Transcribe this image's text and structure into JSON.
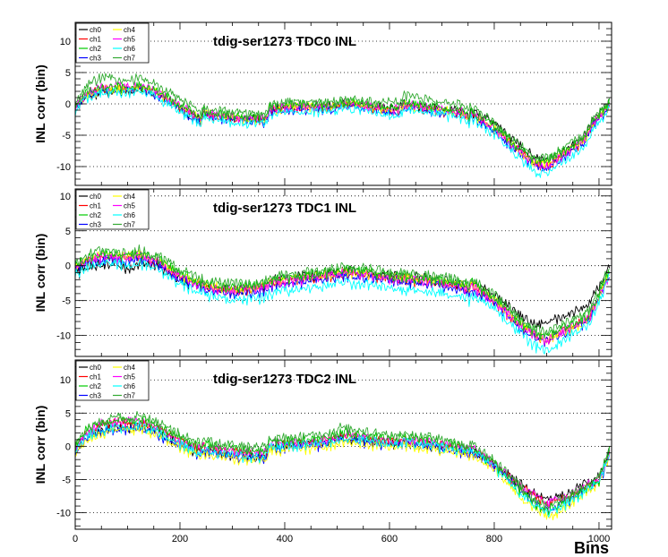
{
  "figure": {
    "x_axis_title": "Bins"
  },
  "colors": {
    "ch0": "#000000",
    "ch1": "#ff0000",
    "ch2": "#00cc00",
    "ch3": "#0000ff",
    "ch4": "#ffff00",
    "ch5": "#ff00ff",
    "ch6": "#00ffff",
    "ch7": "#33aa33"
  },
  "chart_data": [
    {
      "type": "line",
      "title": "tdig-ser1273 TDC0 INL",
      "xlabel": "",
      "ylabel": "INL corr (bin)",
      "xlim": [
        0,
        1024
      ],
      "ylim": [
        -13,
        13
      ],
      "x_ticks": [
        0,
        200,
        400,
        600,
        800,
        1000
      ],
      "y_ticks": [
        -10,
        -5,
        0,
        5,
        10
      ],
      "grid": "horizontal dotted",
      "legend": "top-left",
      "x": [
        0,
        20,
        50,
        80,
        110,
        120,
        160,
        200,
        240,
        245,
        280,
        330,
        365,
        370,
        420,
        470,
        500,
        505,
        550,
        600,
        620,
        625,
        680,
        740,
        752,
        755,
        800,
        850,
        880,
        900,
        940,
        970,
        990,
        1020
      ],
      "series": [
        {
          "name": "ch0",
          "values": [
            -0.5,
            1.0,
            2.0,
            2.0,
            2.0,
            2.5,
            1.5,
            -0.5,
            -2.5,
            -1.5,
            -1.8,
            -2.2,
            -2.3,
            -0.7,
            -0.3,
            -0.2,
            -0.3,
            0.3,
            0.0,
            -0.5,
            -0.5,
            0.2,
            -0.5,
            -1.0,
            -2.0,
            -1.0,
            -3.0,
            -6.5,
            -8.5,
            -9.0,
            -7.0,
            -5.0,
            -2.5,
            0.5
          ]
        },
        {
          "name": "ch1",
          "values": [
            -0.8,
            1.5,
            2.5,
            2.5,
            2.5,
            3.0,
            1.5,
            -0.5,
            -2.5,
            -1.5,
            -2.0,
            -2.5,
            -2.5,
            -1.0,
            -0.5,
            -0.5,
            -0.5,
            0.0,
            -0.3,
            -1.0,
            -1.0,
            -0.2,
            -0.8,
            -1.5,
            -2.5,
            -1.5,
            -4.0,
            -7.5,
            -9.5,
            -10.0,
            -7.5,
            -6.0,
            -3.0,
            0.0
          ]
        },
        {
          "name": "ch2",
          "values": [
            -0.5,
            1.8,
            2.8,
            2.8,
            2.6,
            3.2,
            2.0,
            0.0,
            -2.0,
            -1.0,
            -1.5,
            -2.0,
            -2.0,
            -0.5,
            0.0,
            0.0,
            0.0,
            0.5,
            0.2,
            -0.5,
            -0.5,
            0.5,
            -0.3,
            -1.0,
            -2.0,
            -1.0,
            -3.5,
            -7.0,
            -9.0,
            -9.0,
            -7.0,
            -5.5,
            -2.5,
            0.3
          ]
        },
        {
          "name": "ch3",
          "values": [
            -0.8,
            1.3,
            2.3,
            2.3,
            2.2,
            2.8,
            1.3,
            -0.8,
            -2.8,
            -1.8,
            -2.2,
            -2.7,
            -2.7,
            -1.2,
            -0.7,
            -0.7,
            -0.7,
            -0.2,
            -0.5,
            -1.2,
            -1.2,
            -0.4,
            -1.0,
            -1.7,
            -2.7,
            -1.7,
            -4.3,
            -8.0,
            -10.0,
            -10.3,
            -8.0,
            -6.2,
            -3.2,
            -0.2
          ]
        },
        {
          "name": "ch4",
          "values": [
            -0.5,
            1.5,
            2.5,
            2.5,
            2.5,
            3.0,
            1.8,
            -0.3,
            -2.3,
            -1.3,
            -1.8,
            -2.3,
            -2.3,
            -0.8,
            -0.3,
            -0.3,
            -0.3,
            0.2,
            0.0,
            -0.8,
            -0.8,
            0.0,
            -0.6,
            -1.3,
            -2.3,
            -1.3,
            -3.8,
            -7.5,
            -9.5,
            -9.5,
            -7.5,
            -5.8,
            -2.8,
            0.0
          ]
        },
        {
          "name": "ch5",
          "values": [
            -0.5,
            1.8,
            2.8,
            3.0,
            2.8,
            3.2,
            1.8,
            -0.2,
            -2.2,
            -1.2,
            -1.7,
            -2.2,
            -2.2,
            -0.7,
            -0.2,
            -0.2,
            -0.2,
            0.3,
            0.0,
            -0.7,
            -0.7,
            0.1,
            -0.5,
            -1.2,
            -2.2,
            -1.2,
            -3.8,
            -7.6,
            -9.6,
            -9.8,
            -7.6,
            -5.9,
            -2.9,
            0.1
          ]
        },
        {
          "name": "ch6",
          "values": [
            -1.0,
            1.0,
            2.0,
            2.0,
            2.0,
            2.5,
            1.0,
            -1.2,
            -3.2,
            -2.2,
            -2.6,
            -3.1,
            -3.1,
            -1.6,
            -1.1,
            -1.1,
            -1.1,
            -0.6,
            -0.9,
            -1.6,
            -1.6,
            -0.8,
            -1.4,
            -2.1,
            -3.1,
            -2.1,
            -4.8,
            -8.6,
            -10.8,
            -11.0,
            -8.8,
            -6.8,
            -3.8,
            -0.6
          ]
        },
        {
          "name": "ch7",
          "values": [
            0.0,
            3.0,
            4.5,
            4.0,
            4.0,
            4.5,
            3.0,
            1.0,
            -1.0,
            -0.5,
            -1.0,
            -1.5,
            -1.5,
            0.0,
            0.5,
            0.5,
            0.5,
            1.0,
            0.7,
            0.5,
            0.5,
            1.5,
            0.8,
            0.0,
            -1.0,
            0.0,
            -3.0,
            -6.5,
            -8.5,
            -8.5,
            -6.5,
            -5.0,
            -2.0,
            0.5
          ]
        }
      ]
    },
    {
      "type": "line",
      "title": "tdig-ser1273 TDC1 INL",
      "xlabel": "",
      "ylabel": "INL corr (bin)",
      "xlim": [
        0,
        1024
      ],
      "ylim": [
        -13,
        11
      ],
      "x_ticks": [
        0,
        200,
        400,
        600,
        800,
        1000
      ],
      "y_ticks": [
        -10,
        -5,
        0,
        5,
        10
      ],
      "grid": "horizontal dotted",
      "legend": "top-left",
      "x": [
        0,
        30,
        60,
        90,
        110,
        120,
        160,
        200,
        250,
        300,
        350,
        365,
        370,
        420,
        470,
        520,
        560,
        600,
        650,
        700,
        740,
        752,
        755,
        800,
        850,
        880,
        900,
        940,
        980,
        1020
      ],
      "series": [
        {
          "name": "ch0",
          "values": [
            -1.0,
            0.0,
            0.5,
            0.0,
            -0.2,
            0.5,
            0.0,
            -2.0,
            -3.0,
            -3.5,
            -3.0,
            -2.5,
            -2.0,
            -1.5,
            -1.0,
            -0.5,
            -0.8,
            -1.3,
            -1.5,
            -2.0,
            -2.5,
            -3.0,
            -2.2,
            -4.0,
            -7.0,
            -8.5,
            -8.0,
            -7.0,
            -5.5,
            0.0
          ]
        },
        {
          "name": "ch1",
          "values": [
            -0.2,
            1.0,
            1.5,
            1.2,
            1.2,
            1.5,
            0.5,
            -1.5,
            -3.0,
            -3.5,
            -3.2,
            -3.0,
            -2.5,
            -2.0,
            -1.5,
            -1.0,
            -1.3,
            -1.8,
            -2.0,
            -2.5,
            -3.0,
            -3.5,
            -2.8,
            -5.0,
            -8.5,
            -10.0,
            -10.5,
            -9.0,
            -7.5,
            -1.0
          ]
        },
        {
          "name": "ch2",
          "values": [
            0.2,
            1.5,
            2.0,
            1.8,
            1.8,
            2.0,
            1.0,
            -1.0,
            -2.5,
            -3.0,
            -2.8,
            -2.5,
            -2.0,
            -1.5,
            -1.0,
            -0.5,
            -0.8,
            -1.3,
            -1.5,
            -2.0,
            -2.5,
            -3.0,
            -2.2,
            -4.5,
            -8.0,
            -9.5,
            -10.0,
            -8.5,
            -7.0,
            -0.5
          ]
        },
        {
          "name": "ch3",
          "values": [
            -0.5,
            0.8,
            1.2,
            1.0,
            1.0,
            1.3,
            0.3,
            -1.8,
            -3.3,
            -3.8,
            -3.5,
            -3.3,
            -2.8,
            -2.3,
            -1.8,
            -1.3,
            -1.6,
            -2.1,
            -2.3,
            -2.8,
            -3.3,
            -3.8,
            -3.1,
            -5.3,
            -8.8,
            -10.3,
            -10.8,
            -9.3,
            -7.8,
            -1.3
          ]
        },
        {
          "name": "ch4",
          "values": [
            0.0,
            1.2,
            1.8,
            1.5,
            1.5,
            1.8,
            0.8,
            -1.2,
            -2.7,
            -3.2,
            -3.0,
            -2.7,
            -2.2,
            -1.7,
            -1.2,
            -0.7,
            -1.0,
            -1.5,
            -1.7,
            -2.2,
            -2.7,
            -3.2,
            -2.4,
            -4.7,
            -8.2,
            -9.8,
            -10.5,
            -9.2,
            -7.8,
            -0.8
          ]
        },
        {
          "name": "ch5",
          "values": [
            -0.2,
            1.0,
            1.6,
            1.3,
            1.3,
            1.6,
            0.6,
            -1.4,
            -2.9,
            -3.4,
            -3.1,
            -2.9,
            -2.4,
            -1.9,
            -1.4,
            -0.9,
            -1.2,
            -1.7,
            -1.9,
            -2.4,
            -2.9,
            -3.4,
            -2.7,
            -4.9,
            -8.4,
            -10.0,
            -10.5,
            -9.0,
            -7.5,
            -1.0
          ]
        },
        {
          "name": "ch6",
          "values": [
            -1.0,
            0.2,
            0.5,
            0.3,
            0.3,
            0.6,
            -0.5,
            -2.5,
            -4.0,
            -4.8,
            -4.5,
            -4.3,
            -3.8,
            -3.3,
            -2.8,
            -2.3,
            -2.6,
            -3.1,
            -3.3,
            -3.8,
            -4.3,
            -4.8,
            -4.0,
            -6.0,
            -9.5,
            -11.5,
            -12.0,
            -10.0,
            -8.5,
            -1.5
          ]
        },
        {
          "name": "ch7",
          "values": [
            0.5,
            2.0,
            2.5,
            2.0,
            2.0,
            2.5,
            1.5,
            -0.5,
            -2.0,
            -2.5,
            -2.3,
            -2.0,
            -1.5,
            -1.0,
            -0.5,
            0.0,
            -0.3,
            -0.8,
            -1.0,
            -1.5,
            -2.0,
            -2.5,
            -1.8,
            -4.0,
            -7.5,
            -9.0,
            -9.5,
            -8.0,
            -6.5,
            0.0
          ]
        }
      ]
    },
    {
      "type": "line",
      "title": "tdig-ser1273 TDC2 INL",
      "xlabel": "Bins",
      "ylabel": "INL corr (bin)",
      "xlim": [
        0,
        1024
      ],
      "ylim": [
        -12.5,
        13
      ],
      "x_ticks": [
        0,
        200,
        400,
        600,
        800,
        1000
      ],
      "y_ticks": [
        -10,
        -5,
        0,
        5,
        10
      ],
      "grid": "horizontal dotted",
      "legend": "top-left",
      "x": [
        0,
        20,
        50,
        80,
        110,
        120,
        150,
        200,
        240,
        245,
        280,
        330,
        365,
        370,
        420,
        470,
        500,
        505,
        550,
        600,
        620,
        625,
        680,
        740,
        752,
        755,
        800,
        850,
        880,
        900,
        940,
        970,
        1000,
        1020
      ],
      "series": [
        {
          "name": "ch0",
          "values": [
            -0.5,
            1.5,
            2.5,
            3.0,
            3.0,
            3.0,
            2.5,
            0.5,
            -1.0,
            -0.5,
            -1.0,
            -1.5,
            -1.5,
            0.0,
            0.2,
            0.5,
            1.0,
            1.5,
            1.0,
            0.5,
            0.5,
            0.8,
            0.2,
            -0.5,
            -1.0,
            -0.5,
            -2.5,
            -5.5,
            -7.0,
            -8.0,
            -7.0,
            -5.5,
            -4.5,
            -0.5
          ]
        },
        {
          "name": "ch1",
          "values": [
            -0.5,
            2.0,
            3.2,
            3.8,
            3.5,
            3.8,
            3.0,
            1.0,
            -0.5,
            0.0,
            -0.5,
            -1.0,
            -1.0,
            0.3,
            0.5,
            0.8,
            1.2,
            1.8,
            1.3,
            0.8,
            0.8,
            1.0,
            0.5,
            -0.3,
            -0.8,
            -0.3,
            -2.5,
            -6.0,
            -7.5,
            -8.5,
            -7.5,
            -6.0,
            -5.0,
            -1.0
          ]
        },
        {
          "name": "ch2",
          "values": [
            0.0,
            2.5,
            3.5,
            4.0,
            3.8,
            4.2,
            3.5,
            1.5,
            0.0,
            0.5,
            0.0,
            -0.5,
            -0.5,
            0.8,
            1.0,
            1.3,
            1.8,
            2.3,
            1.8,
            1.3,
            1.3,
            1.5,
            1.0,
            0.0,
            -0.5,
            0.0,
            -2.5,
            -6.5,
            -8.5,
            -9.5,
            -8.0,
            -6.5,
            -5.0,
            -0.5
          ]
        },
        {
          "name": "ch3",
          "values": [
            -0.8,
            1.2,
            2.2,
            2.8,
            2.6,
            3.0,
            2.2,
            0.2,
            -1.2,
            -0.8,
            -1.2,
            -1.7,
            -1.7,
            -0.2,
            0.0,
            0.3,
            0.7,
            1.3,
            0.8,
            0.3,
            0.3,
            0.5,
            0.0,
            -0.8,
            -1.3,
            -0.8,
            -3.0,
            -6.5,
            -8.5,
            -9.5,
            -8.2,
            -6.5,
            -5.5,
            -1.0
          ]
        },
        {
          "name": "ch4",
          "values": [
            -1.0,
            1.0,
            2.0,
            2.5,
            2.5,
            2.8,
            2.0,
            0.0,
            -1.5,
            -1.0,
            -1.5,
            -2.0,
            -2.0,
            -0.5,
            -0.3,
            0.0,
            0.5,
            1.0,
            0.5,
            0.0,
            0.0,
            0.3,
            -0.3,
            -1.0,
            -1.5,
            -1.0,
            -3.5,
            -7.5,
            -9.5,
            -10.5,
            -9.0,
            -7.0,
            -5.5,
            -1.0
          ]
        },
        {
          "name": "ch5",
          "values": [
            -0.5,
            2.0,
            3.5,
            4.0,
            3.8,
            4.0,
            3.2,
            1.0,
            -0.3,
            0.2,
            -0.3,
            -0.8,
            -0.8,
            0.5,
            0.7,
            1.0,
            1.5,
            2.0,
            1.5,
            1.0,
            1.0,
            1.2,
            0.7,
            0.0,
            -0.5,
            0.0,
            -2.5,
            -6.0,
            -7.5,
            -8.5,
            -7.5,
            -6.0,
            -4.8,
            -0.8
          ]
        },
        {
          "name": "ch6",
          "values": [
            -0.8,
            1.5,
            2.5,
            3.0,
            2.8,
            3.2,
            2.5,
            0.5,
            -1.0,
            -0.5,
            -1.0,
            -1.5,
            -1.5,
            0.0,
            0.2,
            0.5,
            1.0,
            1.5,
            1.0,
            0.5,
            0.5,
            0.8,
            0.2,
            -0.5,
            -1.0,
            -0.5,
            -3.0,
            -7.0,
            -9.0,
            -10.0,
            -8.5,
            -6.8,
            -5.3,
            -1.0
          ]
        },
        {
          "name": "ch7",
          "values": [
            0.0,
            2.5,
            4.0,
            4.5,
            4.3,
            4.8,
            4.0,
            2.0,
            0.5,
            1.0,
            0.5,
            0.0,
            0.0,
            1.2,
            1.5,
            1.8,
            2.3,
            3.0,
            2.3,
            1.8,
            1.8,
            2.0,
            1.5,
            0.5,
            0.0,
            0.5,
            -2.0,
            -6.0,
            -8.0,
            -9.0,
            -7.5,
            -6.0,
            -4.5,
            0.0
          ]
        }
      ]
    }
  ]
}
